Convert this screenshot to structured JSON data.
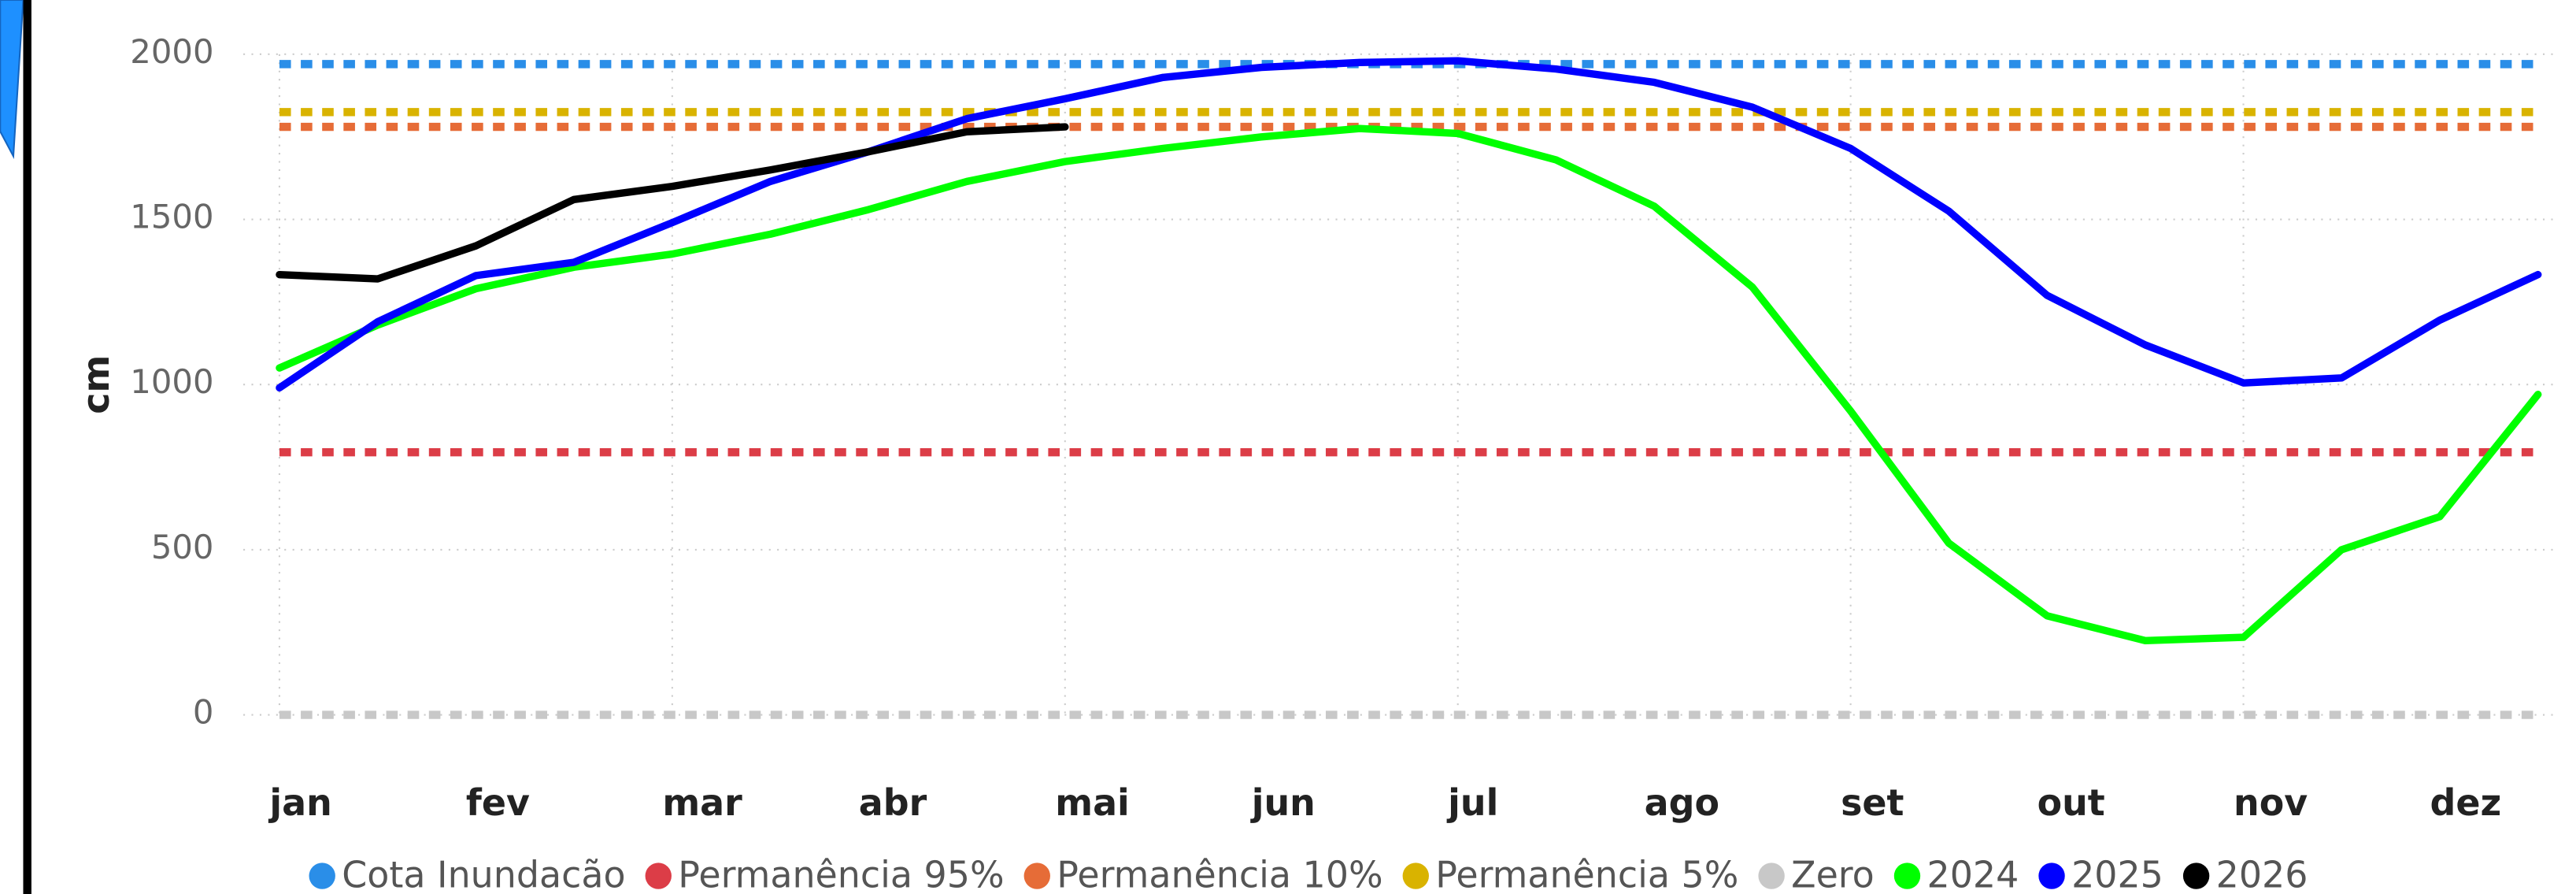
{
  "chart_data": {
    "type": "line",
    "y_label": "cm",
    "categories": [
      "jan",
      null,
      "fev",
      null,
      "mar",
      null,
      "abr",
      null,
      "mai",
      null,
      "jun",
      null,
      "jul",
      null,
      "ago",
      null,
      "set",
      null,
      "out",
      null,
      "nov",
      null,
      "dez",
      null
    ],
    "ylim": [
      0,
      2000
    ],
    "yticks": [
      0,
      500,
      1000,
      1500,
      2000
    ],
    "grid": true,
    "series": [
      {
        "name": "Cota Inundacão",
        "color": "#2a8ee8",
        "style": "dashed",
        "values": [
          1970,
          1970,
          1970,
          1970,
          1970,
          1970,
          1970,
          1970,
          1970,
          1970,
          1970,
          1970,
          1970,
          1970,
          1970,
          1970,
          1970,
          1970,
          1970,
          1970,
          1970,
          1970,
          1970,
          1970
        ]
      },
      {
        "name": "Permanência 95%",
        "color": "#dc3d47",
        "style": "dashed",
        "values": [
          795,
          795,
          795,
          795,
          795,
          795,
          795,
          795,
          795,
          795,
          795,
          795,
          795,
          795,
          795,
          795,
          795,
          795,
          795,
          795,
          795,
          795,
          795,
          795
        ]
      },
      {
        "name": "Permanência 10%",
        "color": "#e66c37",
        "style": "dashed",
        "values": [
          1780,
          1780,
          1780,
          1780,
          1780,
          1780,
          1780,
          1780,
          1780,
          1780,
          1780,
          1780,
          1780,
          1780,
          1780,
          1780,
          1780,
          1780,
          1780,
          1780,
          1780,
          1780,
          1780,
          1780
        ]
      },
      {
        "name": "Permanência 5%",
        "color": "#d9b300",
        "style": "dashed",
        "values": [
          1825,
          1825,
          1825,
          1825,
          1825,
          1825,
          1825,
          1825,
          1825,
          1825,
          1825,
          1825,
          1825,
          1825,
          1825,
          1825,
          1825,
          1825,
          1825,
          1825,
          1825,
          1825,
          1825,
          1825
        ]
      },
      {
        "name": "Zero",
        "color": "#c8c8c8",
        "style": "dashed",
        "values": [
          0,
          0,
          0,
          0,
          0,
          0,
          0,
          0,
          0,
          0,
          0,
          0,
          0,
          0,
          0,
          0,
          0,
          0,
          0,
          0,
          0,
          0,
          0,
          0
        ]
      },
      {
        "name": "2024",
        "color": "#00ff00",
        "style": "solid",
        "values": [
          1050,
          1180,
          1290,
          1355,
          1395,
          1455,
          1530,
          1615,
          1675,
          1715,
          1750,
          1775,
          1760,
          1680,
          1540,
          1295,
          920,
          520,
          300,
          225,
          235,
          500,
          600,
          970
        ]
      },
      {
        "name": "2025",
        "color": "#0000ff",
        "style": "solid",
        "values": [
          990,
          1190,
          1330,
          1370,
          1490,
          1615,
          1705,
          1805,
          1865,
          1930,
          1960,
          1975,
          1980,
          1955,
          1915,
          1840,
          1715,
          1525,
          1270,
          1120,
          1005,
          1020,
          1195,
          1333
        ]
      },
      {
        "name": "2026",
        "color": "#000000",
        "style": "solid",
        "values": [
          1333,
          1320,
          1420,
          1560,
          1600,
          1650,
          1705,
          1765,
          1780,
          null,
          null,
          null,
          null,
          null,
          null,
          null,
          null,
          null,
          null,
          null,
          null,
          null,
          null,
          null
        ]
      }
    ]
  }
}
